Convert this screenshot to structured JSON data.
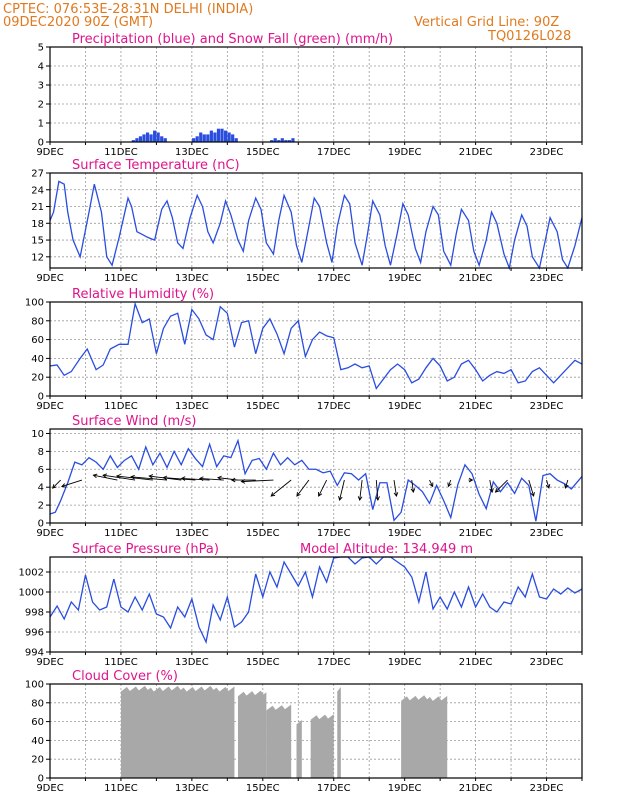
{
  "header": {
    "line1": "CPTEC:  076:53E-28:31N  DELHI (INDIA)",
    "line2": "09DEC2020 90Z (GMT)",
    "grid_note": "Vertical Grid Line: 90Z",
    "code": "TQ0126L028"
  },
  "colors": {
    "header": "#e07a1f",
    "title": "#e0148c",
    "line": "#2a4de0",
    "snow": "#1a9a2a",
    "cloud": "#a8a8a8"
  },
  "chart_data": [
    {
      "id": "precip",
      "type": "bar",
      "title": "Precipitation (blue) and Snow Fall (green) (mm/h)",
      "x_range_days": [
        0,
        15
      ],
      "x_tick_labels": [
        "9DEC",
        "11DEC",
        "13DEC",
        "15DEC",
        "17DEC",
        "19DEC",
        "21DEC",
        "23DEC"
      ],
      "ylim": [
        0,
        5
      ],
      "yticks": [
        0,
        1,
        2,
        3,
        4,
        5
      ],
      "series": [
        {
          "name": "Precipitation",
          "color": "#2a4de0",
          "x": [
            2.35,
            2.45,
            2.55,
            2.65,
            2.75,
            2.85,
            2.95,
            3.05,
            3.15,
            3.25,
            4.05,
            4.15,
            4.25,
            4.35,
            4.45,
            4.55,
            4.65,
            4.75,
            4.85,
            4.95,
            5.05,
            5.15,
            5.25,
            6.25,
            6.35,
            6.45,
            6.55,
            6.65,
            6.75,
            6.85
          ],
          "values": [
            0.1,
            0.2,
            0.3,
            0.4,
            0.5,
            0.4,
            0.6,
            0.5,
            0.3,
            0.2,
            0.2,
            0.3,
            0.5,
            0.4,
            0.4,
            0.6,
            0.5,
            0.7,
            0.7,
            0.6,
            0.5,
            0.4,
            0.2,
            0.1,
            0.2,
            0.1,
            0.2,
            0.1,
            0.1,
            0.2
          ]
        },
        {
          "name": "Snow Fall",
          "color": "#1a9a2a",
          "x": [
            2.6,
            2.9,
            4.5,
            4.7,
            5.0
          ],
          "values": [
            0.05,
            0.05,
            0.05,
            0.06,
            0.05
          ]
        }
      ]
    },
    {
      "id": "temp",
      "type": "line",
      "title": "Surface Temperature (nC)",
      "x_tick_labels": [
        "9DEC",
        "11DEC",
        "13DEC",
        "15DEC",
        "17DEC",
        "19DEC",
        "21DEC",
        "23DEC"
      ],
      "ylim": [
        10,
        27
      ],
      "yticks": [
        12,
        15,
        18,
        21,
        24,
        27
      ],
      "x": [
        0,
        0.1,
        0.25,
        0.4,
        0.5,
        0.65,
        0.85,
        1.1,
        1.25,
        1.45,
        1.6,
        1.75,
        1.95,
        2.2,
        2.3,
        2.45,
        2.6,
        2.75,
        2.95,
        3.15,
        3.3,
        3.45,
        3.6,
        3.75,
        3.95,
        4.15,
        4.3,
        4.45,
        4.6,
        4.8,
        4.95,
        5.1,
        5.3,
        5.45,
        5.6,
        5.8,
        5.95,
        6.1,
        6.3,
        6.45,
        6.6,
        6.8,
        6.95,
        7.1,
        7.3,
        7.45,
        7.6,
        7.8,
        7.95,
        8.1,
        8.3,
        8.45,
        8.6,
        8.8,
        8.95,
        9.1,
        9.3,
        9.45,
        9.6,
        9.8,
        9.95,
        10.1,
        10.3,
        10.45,
        10.6,
        10.8,
        10.95,
        11.1,
        11.3,
        11.45,
        11.6,
        11.8,
        11.95,
        12.1,
        12.3,
        12.45,
        12.6,
        12.8,
        12.95,
        13.1,
        13.3,
        13.45,
        13.6,
        13.8,
        13.95,
        14.1,
        14.3,
        14.45,
        14.6,
        14.8,
        15
      ],
      "values": [
        18.5,
        20,
        25.5,
        25,
        20,
        15,
        12,
        20,
        25,
        20,
        12,
        10.5,
        15.5,
        22.5,
        21,
        16.5,
        16,
        15.5,
        15,
        20.5,
        22,
        19,
        14.5,
        13.5,
        19,
        23,
        21,
        16.5,
        14.5,
        18,
        22,
        19.5,
        15,
        13,
        18.5,
        22.5,
        20.5,
        14.5,
        12.5,
        18.5,
        23,
        20,
        14,
        11,
        17.5,
        22.5,
        21,
        14.5,
        11,
        17.5,
        23,
        21.5,
        14.5,
        10.5,
        16,
        22,
        19.5,
        14,
        10.5,
        16.5,
        21.5,
        19.5,
        13.5,
        11,
        16.5,
        21,
        19.5,
        13,
        10.5,
        16,
        20.5,
        18.5,
        13,
        10.5,
        15,
        20,
        18,
        12.5,
        10,
        15,
        19.5,
        17.5,
        12,
        10,
        14.5,
        19,
        16.5,
        11.5,
        9.5,
        14,
        19
      ]
    },
    {
      "id": "rh",
      "type": "line",
      "title": "Relative Humidity (%)",
      "x_tick_labels": [
        "9DEC",
        "11DEC",
        "13DEC",
        "15DEC",
        "17DEC",
        "19DEC",
        "21DEC",
        "23DEC"
      ],
      "ylim": [
        0,
        100
      ],
      "yticks": [
        0,
        20,
        40,
        60,
        80,
        100
      ],
      "x": [
        0,
        0.2,
        0.4,
        0.6,
        0.85,
        1.05,
        1.3,
        1.5,
        1.7,
        1.95,
        2.2,
        2.4,
        2.6,
        2.8,
        3.0,
        3.2,
        3.4,
        3.6,
        3.8,
        4.0,
        4.2,
        4.4,
        4.6,
        4.8,
        5.0,
        5.2,
        5.4,
        5.6,
        5.8,
        6.0,
        6.2,
        6.4,
        6.6,
        6.8,
        7.0,
        7.2,
        7.4,
        7.6,
        7.8,
        8.0,
        8.2,
        8.4,
        8.6,
        8.8,
        9.0,
        9.2,
        9.4,
        9.6,
        9.8,
        10.0,
        10.2,
        10.4,
        10.6,
        10.8,
        11.0,
        11.2,
        11.4,
        11.6,
        11.8,
        12.0,
        12.2,
        12.4,
        12.6,
        12.8,
        13.0,
        13.2,
        13.4,
        13.6,
        13.8,
        14.0,
        14.2,
        14.4,
        14.6,
        14.8,
        15
      ],
      "values": [
        32,
        33,
        22,
        26,
        40,
        50,
        28,
        33,
        50,
        55,
        55,
        98,
        78,
        82,
        45,
        72,
        85,
        88,
        55,
        92,
        82,
        65,
        60,
        95,
        88,
        52,
        78,
        80,
        45,
        72,
        82,
        66,
        45,
        72,
        80,
        42,
        60,
        68,
        64,
        62,
        28,
        30,
        34,
        30,
        32,
        8,
        18,
        28,
        34,
        28,
        14,
        18,
        30,
        40,
        32,
        16,
        20,
        34,
        38,
        28,
        16,
        22,
        26,
        24,
        28,
        14,
        16,
        26,
        30,
        22,
        14,
        22,
        30,
        38,
        34
      ]
    },
    {
      "id": "wind",
      "type": "line",
      "title": "Surface Wind (m/s)",
      "x_tick_labels": [
        "9DEC",
        "11DEC",
        "13DEC",
        "15DEC",
        "17DEC",
        "19DEC",
        "21DEC",
        "23DEC"
      ],
      "ylim": [
        0,
        10.5
      ],
      "yticks": [
        0,
        2,
        4,
        6,
        8,
        10
      ],
      "x": [
        0,
        0.15,
        0.3,
        0.5,
        0.7,
        0.9,
        1.1,
        1.3,
        1.5,
        1.7,
        1.9,
        2.1,
        2.3,
        2.5,
        2.7,
        2.9,
        3.1,
        3.3,
        3.5,
        3.7,
        3.9,
        4.1,
        4.3,
        4.5,
        4.7,
        4.9,
        5.1,
        5.3,
        5.5,
        5.7,
        5.9,
        6.1,
        6.3,
        6.5,
        6.7,
        6.9,
        7.1,
        7.3,
        7.5,
        7.7,
        7.9,
        8.1,
        8.3,
        8.5,
        8.7,
        8.9,
        9.1,
        9.3,
        9.5,
        9.7,
        9.9,
        10.1,
        10.3,
        10.5,
        10.7,
        10.9,
        11.1,
        11.3,
        11.5,
        11.7,
        11.9,
        12.1,
        12.3,
        12.5,
        12.7,
        12.9,
        13.1,
        13.3,
        13.5,
        13.7,
        13.9,
        14.1,
        14.3,
        14.5,
        14.7,
        15
      ],
      "values": [
        1,
        1.2,
        2.5,
        4.5,
        6.8,
        6.5,
        7.3,
        6.8,
        6,
        7.5,
        6.2,
        7,
        7.5,
        6,
        8.5,
        6.5,
        7.8,
        6.2,
        8,
        6.5,
        8.3,
        7.2,
        6.3,
        8.8,
        6.3,
        7.5,
        7.3,
        9.2,
        5.5,
        7,
        7.2,
        6,
        7.8,
        6.5,
        7.3,
        6.5,
        7,
        6,
        6,
        5.6,
        5.8,
        4.2,
        5.6,
        5.5,
        4.8,
        5.5,
        1.5,
        4.5,
        4.5,
        0.3,
        1.2,
        4.8,
        4.2,
        3.5,
        2.2,
        4.2,
        2.5,
        0.6,
        4.3,
        6.5,
        5.5,
        3.2,
        1.6,
        4.6,
        3.5,
        4.5,
        3.3,
        5,
        4.2,
        0.2,
        5.3,
        5.5,
        4.8,
        4.4,
        3.8,
        5.2
      ],
      "arrows": {
        "x": [
          0.3,
          0.9,
          1.9,
          2.4,
          2.9,
          3.3,
          3.7,
          4.1,
          4.5,
          4.9,
          5.3,
          5.8,
          6.3,
          6.8,
          7.3,
          7.8,
          8.3,
          8.8,
          9.2,
          9.7,
          10.2,
          10.7,
          11.3,
          11.8,
          12.4,
          12.9,
          13.5,
          14.0,
          14.6
        ],
        "u": [
          -1,
          -2.5,
          -3,
          -4,
          -4.5,
          -4.5,
          -4,
          -4,
          -3.5,
          -3,
          -2.5,
          -3,
          -4,
          -2.5,
          -1.5,
          -1,
          -0.6,
          -0.3,
          0.2,
          0.3,
          0.2,
          0.4,
          -0.3,
          0.5,
          0.3,
          -1.5,
          0.6,
          0.3,
          -0.3
        ],
        "v": [
          -1,
          -0.8,
          0.6,
          0.6,
          0.5,
          0.4,
          0.5,
          0.3,
          0.2,
          0.2,
          0.3,
          0,
          -0.2,
          -2,
          -2,
          -2,
          -2.5,
          -2.5,
          -2.5,
          -2,
          -1.5,
          -0.8,
          -0.8,
          0,
          -1.5,
          -1.5,
          -2,
          -1,
          -1
        ]
      }
    },
    {
      "id": "pressure",
      "type": "line",
      "title": "Surface Pressure (hPa)",
      "annotation": "Model Altitude: 134.949 m",
      "x_tick_labels": [
        "9DEC",
        "11DEC",
        "13DEC",
        "15DEC",
        "17DEC",
        "19DEC",
        "21DEC",
        "23DEC"
      ],
      "ylim": [
        994,
        1003.5
      ],
      "yticks": [
        994,
        996,
        998,
        1000,
        1002
      ],
      "x": [
        0,
        0.2,
        0.4,
        0.6,
        0.8,
        1.0,
        1.2,
        1.4,
        1.6,
        1.8,
        2.0,
        2.2,
        2.4,
        2.6,
        2.8,
        3.0,
        3.2,
        3.4,
        3.6,
        3.8,
        4.0,
        4.2,
        4.4,
        4.6,
        4.8,
        5.0,
        5.2,
        5.4,
        5.6,
        5.8,
        6.0,
        6.2,
        6.4,
        6.6,
        6.8,
        7.0,
        7.2,
        7.4,
        7.6,
        7.8,
        8.0,
        8.2,
        8.4,
        8.6,
        8.8,
        9.0,
        9.2,
        9.4,
        9.6,
        9.8,
        10.0,
        10.2,
        10.4,
        10.6,
        10.8,
        11.0,
        11.2,
        11.4,
        11.6,
        11.8,
        12.0,
        12.2,
        12.4,
        12.6,
        12.8,
        13.0,
        13.2,
        13.4,
        13.6,
        13.8,
        14.0,
        14.2,
        14.4,
        14.6,
        14.8,
        15
      ],
      "values": [
        997.5,
        998.6,
        997.3,
        999,
        998.2,
        1001.7,
        999,
        998.2,
        998.5,
        1001.3,
        998.5,
        998,
        999.5,
        998.2,
        999.8,
        997.8,
        997.5,
        996.4,
        998.5,
        997.5,
        999.3,
        996.5,
        995,
        998.7,
        997.2,
        999.5,
        996.5,
        997,
        998,
        1001.8,
        999.5,
        1002,
        1000.5,
        1003,
        1001.8,
        1000.6,
        1002,
        999.5,
        1002.5,
        1001,
        1003.4,
        1004,
        1003.8,
        1002.8,
        1003.4,
        1004.5,
        1002.8,
        1003.5,
        1005,
        1003,
        1002.5,
        1001.5,
        999,
        1002,
        998.3,
        999.5,
        998.3,
        1000,
        998.5,
        1000.5,
        998.5,
        999.8,
        998.5,
        998,
        999,
        998.8,
        1000.5,
        999.5,
        1001.8,
        999.5,
        999.3,
        1000.3,
        999.8,
        1000.4,
        999.9,
        1000.3
      ]
    },
    {
      "id": "cloud",
      "type": "area",
      "title": "Cloud Cover (%)",
      "x_tick_labels": [
        "9DEC",
        "11DEC",
        "13DEC",
        "15DEC",
        "17DEC",
        "19DEC",
        "21DEC",
        "23DEC"
      ],
      "ylim": [
        0,
        100
      ],
      "yticks": [
        0,
        20,
        40,
        60,
        80,
        100
      ],
      "x": [
        2.0,
        2.05,
        2.3,
        2.6,
        2.9,
        3.2,
        3.5,
        3.8,
        4.1,
        4.4,
        4.7,
        5.0,
        5.2,
        5.25,
        5.5,
        5.8,
        6.0,
        6.2,
        6.4,
        6.6,
        6.8,
        6.9,
        7.0,
        7.1,
        7.2,
        7.3,
        7.5,
        7.7,
        7.9,
        8.05,
        8.1,
        8.2,
        8.4,
        8.6,
        8.8,
        9.0,
        9.1,
        9.2,
        9.5,
        9.8,
        10.1,
        10.4,
        10.7,
        11.0,
        11.2,
        11.25
      ],
      "values": [
        0,
        92,
        93,
        96,
        94,
        96,
        93,
        97,
        95,
        96,
        94,
        97,
        95,
        10,
        90,
        88,
        92,
        85,
        70,
        60,
        65,
        10,
        75,
        20,
        40,
        85,
        30,
        70,
        60,
        35,
        90,
        65,
        45,
        35,
        45,
        85,
        0,
        0,
        0,
        0,
        0,
        0,
        0,
        0,
        0,
        0
      ],
      "blocks": [
        {
          "from": 2.0,
          "to": 5.2,
          "level": 95
        },
        {
          "from": 5.3,
          "to": 6.1,
          "level": 90
        },
        {
          "from": 6.1,
          "to": 6.8,
          "level": 75
        },
        {
          "from": 6.95,
          "to": 7.1,
          "level": 60
        },
        {
          "from": 7.35,
          "to": 8.0,
          "level": 65
        },
        {
          "from": 8.1,
          "to": 8.2,
          "level": 95
        },
        {
          "from": 9.9,
          "to": 11.2,
          "level": 85
        }
      ]
    }
  ]
}
